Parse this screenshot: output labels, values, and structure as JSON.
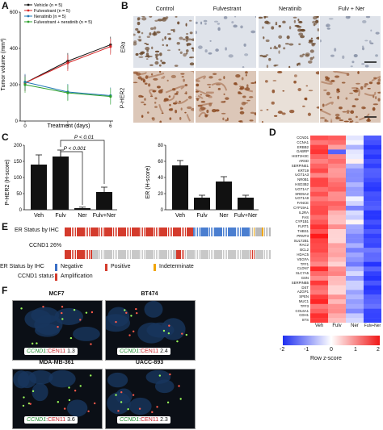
{
  "panels": {
    "A": "A",
    "B": "B",
    "C": "C",
    "D": "D",
    "E": "E",
    "F": "F"
  },
  "panelA": {
    "ylabel": "Tumor volume (mm³)",
    "xlabel": "Treatment (days)",
    "legend": [
      "Vehicle (n = 5)",
      "Fulvestrant (n = 5)",
      "Neratinib (n = 5)",
      "Fulvestrant + neratinib (n = 5)"
    ],
    "yticks": [
      "600",
      "400",
      "200",
      "0"
    ],
    "xticks": [
      "0",
      "3",
      "6"
    ],
    "colors": {
      "vehicle": "#111111",
      "fulvestrant": "#d62728",
      "neratinib": "#1f77b4",
      "combo": "#2ca02c"
    }
  },
  "panelB": {
    "columns": [
      "Control",
      "Fulvestrant",
      "Neratinib",
      "Fulv + Ner"
    ],
    "rows": [
      "ERα",
      "P-HER2"
    ]
  },
  "panelC": {
    "left": {
      "ylabel": "P-HER2 (H-score)",
      "categories": [
        "Veh",
        "Fulv",
        "Ner",
        "Fulv+Ner"
      ],
      "values": [
        140,
        165,
        5,
        55
      ],
      "err": [
        30,
        20,
        3,
        15
      ],
      "yticks": [
        "200",
        "150",
        "100",
        "50",
        "0"
      ],
      "ann1": "P < 0.01",
      "ann2": "P < 0.001"
    },
    "right": {
      "ylabel": "ER (H-score)",
      "categories": [
        "Veh",
        "Fulv",
        "Ner",
        "Fulv+Ner"
      ],
      "values": [
        55,
        15,
        35,
        15
      ],
      "err": [
        6,
        3,
        6,
        3
      ],
      "yticks": [
        "80",
        "60",
        "40",
        "20",
        "0"
      ]
    }
  },
  "chart_data": [
    {
      "type": "line",
      "xlabel": "Treatment (days)",
      "ylabel": "Tumor volume (mm³)",
      "x": [
        0,
        3,
        6
      ],
      "ylim": [
        0,
        600
      ],
      "series": [
        {
          "name": "Vehicle (n = 5)",
          "values": [
            210,
            330,
            420
          ]
        },
        {
          "name": "Fulvestrant (n = 5)",
          "values": [
            210,
            320,
            410
          ]
        },
        {
          "name": "Neratinib (n = 5)",
          "values": [
            215,
            160,
            140
          ]
        },
        {
          "name": "Fulvestrant + neratinib (n = 5)",
          "values": [
            200,
            155,
            135
          ]
        }
      ]
    },
    {
      "type": "bar",
      "ylabel": "P-HER2 (H-score)",
      "categories": [
        "Veh",
        "Fulv",
        "Ner",
        "Fulv+Ner"
      ],
      "values": [
        140,
        165,
        5,
        55
      ],
      "ylim": [
        0,
        200
      ]
    },
    {
      "type": "bar",
      "ylabel": "ER (H-score)",
      "categories": [
        "Veh",
        "Fulv",
        "Ner",
        "Fulv+Ner"
      ],
      "values": [
        55,
        15,
        35,
        15
      ],
      "ylim": [
        0,
        80
      ]
    }
  ],
  "panelD": {
    "genes": [
      "CCND1",
      "CCNA1",
      "ERBB2",
      "GABRP",
      "HIST2H3C",
      "ARSD",
      "SERPINE1",
      "KRT19",
      "UGT1A3",
      "NR0B1",
      "HSD3B2",
      "UGT1A7",
      "SRD5A2",
      "UGT1A9",
      "FANCE",
      "CYP19A1",
      "IL2RA",
      "FAS",
      "CYP1B1",
      "FLRT1",
      "THBS1",
      "PRMT3",
      "SULT2B1",
      "RAC2",
      "BCL2",
      "HDAC5",
      "VEGFA",
      "TFF1",
      "CLDN7",
      "SLC7A5",
      "GSN",
      "SERPINB5",
      "DST",
      "AZGP1",
      "SPEN",
      "MUC1",
      "TFF3",
      "COL6A1",
      "CDH1",
      "STS"
    ],
    "columns": [
      "Veh",
      "Fulv",
      "Ner",
      "Fulv+Ner"
    ],
    "scale_ticks": [
      "-2",
      "-1",
      "0",
      "1",
      "2"
    ],
    "scale_label": "Row z-score"
  },
  "panelE": {
    "row1": "ER Status by IHC",
    "row2": "CCND1 26%",
    "legend_row1_title": "ER Status by IHC",
    "legend_row2_title": "CCND1 status",
    "legend": {
      "negative": "Negative",
      "positive": "Positive",
      "indeterminate": "Indeterminate",
      "amplification": "Amplification"
    }
  },
  "panelF": {
    "tiles": [
      {
        "title": "MCF7",
        "ratio": "1.3"
      },
      {
        "title": "BT474",
        "ratio": "2.4"
      },
      {
        "title": "MDA-MB-361",
        "ratio": "3.6"
      },
      {
        "title": "UACC-893",
        "ratio": "2.3"
      }
    ],
    "gene": "CCND1",
    "sep": ":",
    "cen": "CEN11"
  }
}
